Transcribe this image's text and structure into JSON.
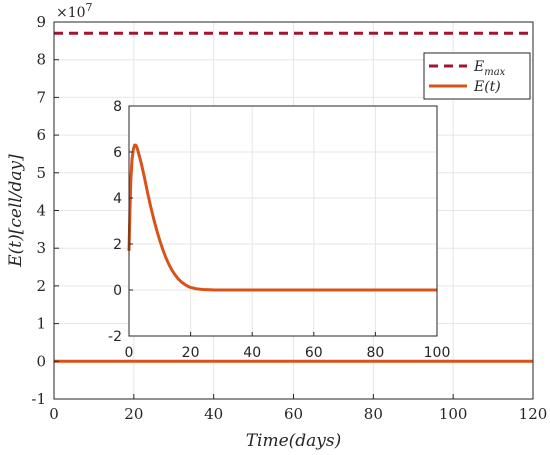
{
  "chart_data": [
    {
      "type": "line",
      "xlabel": "Time(days)",
      "ylabel": "E(t)[cell/day]",
      "xlim": [
        0,
        120
      ],
      "ylim": [
        -1,
        9
      ],
      "x_ticks": [
        "0",
        "20",
        "40",
        "60",
        "80",
        "100",
        "120"
      ],
      "y_ticks": [
        "-1",
        "0",
        "1",
        "2",
        "3",
        "4",
        "5",
        "6",
        "7",
        "8",
        "9"
      ],
      "y_multiplier": "×10",
      "y_exponent": "7",
      "grid": true,
      "legend_position": "top-right",
      "series": [
        {
          "name": "E_max",
          "display_name": "E",
          "display_sub": "max",
          "style": "dashed",
          "color": "#A2142F",
          "x": [
            0,
            120
          ],
          "y": [
            8.7,
            8.7
          ]
        },
        {
          "name": "E(t)",
          "display_name": "E(t)",
          "style": "solid",
          "color": "#D95319",
          "x": [
            0,
            120
          ],
          "y": [
            0,
            0
          ]
        }
      ]
    },
    {
      "type": "line",
      "xlim": [
        0,
        100
      ],
      "ylim": [
        -2,
        8
      ],
      "x_ticks": [
        "0",
        "20",
        "40",
        "60",
        "80",
        "100"
      ],
      "y_ticks": [
        "-2",
        "0",
        "2",
        "4",
        "6",
        "8"
      ],
      "grid": true,
      "series": [
        {
          "color": "#D95319",
          "x": [
            0,
            0.3,
            0.6,
            1,
            1.4,
            1.8,
            2.2,
            2.6,
            3,
            3.5,
            4,
            5,
            6,
            7,
            8,
            9,
            10,
            11,
            12,
            13,
            14,
            15,
            16,
            17,
            18,
            19,
            20,
            22,
            24,
            26,
            28,
            30,
            40,
            60,
            80,
            100
          ],
          "y": [
            1.7,
            3.4,
            4.8,
            5.7,
            6.1,
            6.3,
            6.3,
            6.2,
            6.0,
            5.75,
            5.5,
            4.9,
            4.25,
            3.65,
            3.1,
            2.6,
            2.15,
            1.75,
            1.4,
            1.1,
            0.85,
            0.65,
            0.48,
            0.35,
            0.25,
            0.17,
            0.11,
            0.05,
            0.02,
            0.01,
            0.0,
            0.0,
            0.0,
            0.0,
            0.0,
            0.0
          ]
        }
      ]
    }
  ]
}
